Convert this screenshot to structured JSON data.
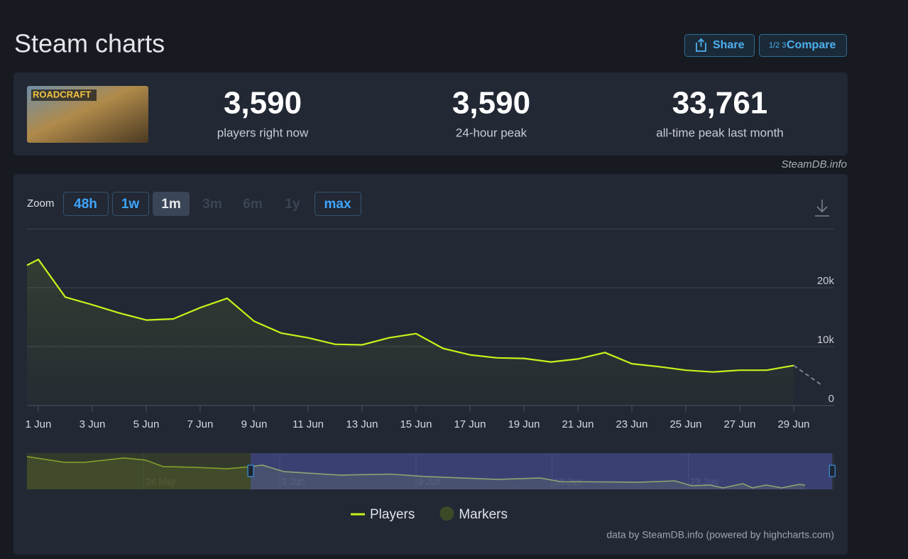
{
  "header": {
    "title": "Steam charts",
    "share": "Share",
    "compare_icon": "1/2 3",
    "compare": "Compare"
  },
  "game": {
    "logo": "ROADCRAFT"
  },
  "stats": [
    {
      "value": "3,590",
      "label": "players right now"
    },
    {
      "value": "3,590",
      "label": "24-hour peak"
    },
    {
      "value": "33,761",
      "label": "all-time peak last month"
    }
  ],
  "source": "SteamDB.info",
  "zoom": {
    "label": "Zoom",
    "options": [
      "48h",
      "1w",
      "1m",
      "3m",
      "6m",
      "1y",
      "max"
    ],
    "active": "1m",
    "disabled": [
      "3m",
      "6m",
      "1y"
    ]
  },
  "credit": "data by SteamDB.info (powered by highcharts.com)",
  "chart_data": [
    {
      "type": "line",
      "series": [
        {
          "name": "Players",
          "color": "#c6f31a",
          "x": [
            0.58,
            1,
            2,
            3,
            4,
            5,
            6,
            7,
            8,
            9,
            10,
            11,
            12,
            13,
            14,
            15,
            16,
            17,
            18,
            19,
            20,
            21,
            22,
            23,
            24,
            25,
            26,
            27,
            28,
            29
          ],
          "values": [
            23800,
            24800,
            18400,
            17100,
            15700,
            14500,
            14700,
            16600,
            18200,
            14300,
            12300,
            11500,
            10400,
            10300,
            11500,
            12200,
            9700,
            8600,
            8100,
            8000,
            7400,
            7900,
            9000,
            7100,
            6600,
            6000,
            5700,
            6000,
            6000,
            6800
          ]
        },
        {
          "name": "Markers",
          "color": "#3d4a28"
        }
      ],
      "now": {
        "x": 30,
        "value": 3590
      },
      "xlim": [
        0.58,
        30.5
      ],
      "xticks": [
        {
          "value": 1,
          "label": "1 Jun"
        },
        {
          "value": 3,
          "label": "3 Jun"
        },
        {
          "value": 5,
          "label": "5 Jun"
        },
        {
          "value": 7,
          "label": "7 Jun"
        },
        {
          "value": 9,
          "label": "9 Jun"
        },
        {
          "value": 11,
          "label": "11 Jun"
        },
        {
          "value": 13,
          "label": "13 Jun"
        },
        {
          "value": 15,
          "label": "15 Jun"
        },
        {
          "value": 17,
          "label": "17 Jun"
        },
        {
          "value": 19,
          "label": "19 Jun"
        },
        {
          "value": 21,
          "label": "21 Jun"
        },
        {
          "value": 23,
          "label": "23 Jun"
        },
        {
          "value": 25,
          "label": "25 Jun"
        },
        {
          "value": 27,
          "label": "27 Jun"
        },
        {
          "value": 29,
          "label": "29 Jun"
        }
      ],
      "ylim": [
        0,
        30000
      ],
      "yticks": [
        0,
        {
          "value": 10000,
          "label": "10k"
        },
        {
          "value": 20000,
          "label": "20k"
        }
      ],
      "grid": true
    },
    {
      "type": "line",
      "series": [
        {
          "color": "#a8c83a",
          "x": [
            20,
            21.9,
            23,
            25,
            26.1,
            27,
            28.5,
            30.3,
            31.5,
            32.1,
            33.2,
            36.1,
            38.7,
            40.5,
            44.2,
            46.4,
            47.4,
            51.5,
            53.3,
            54.2,
            55.1,
            55.8,
            56.8,
            57.3,
            58,
            58.8,
            59.7,
            60
          ],
          "values": [
            33500,
            27700,
            27700,
            32100,
            29900,
            23300,
            22600,
            21100,
            23300,
            24800,
            18200,
            14600,
            15600,
            13100,
            10200,
            11700,
            8000,
            7300,
            8700,
            3600,
            4400,
            1500,
            5800,
            1500,
            4400,
            1500,
            5100,
            4400
          ]
        }
      ],
      "xlim": [
        20,
        61.5
      ],
      "xticks": [
        {
          "value": 26,
          "label": "26 May"
        },
        {
          "value": 33,
          "label": "2 Jun"
        },
        {
          "value": 40,
          "label": "9 Jun"
        },
        {
          "value": 47,
          "label": "16 Jun"
        },
        {
          "value": 54,
          "label": "23 Jun"
        }
      ],
      "ylim": [
        0,
        37000
      ],
      "selection": [
        31.5,
        61.4
      ]
    }
  ]
}
